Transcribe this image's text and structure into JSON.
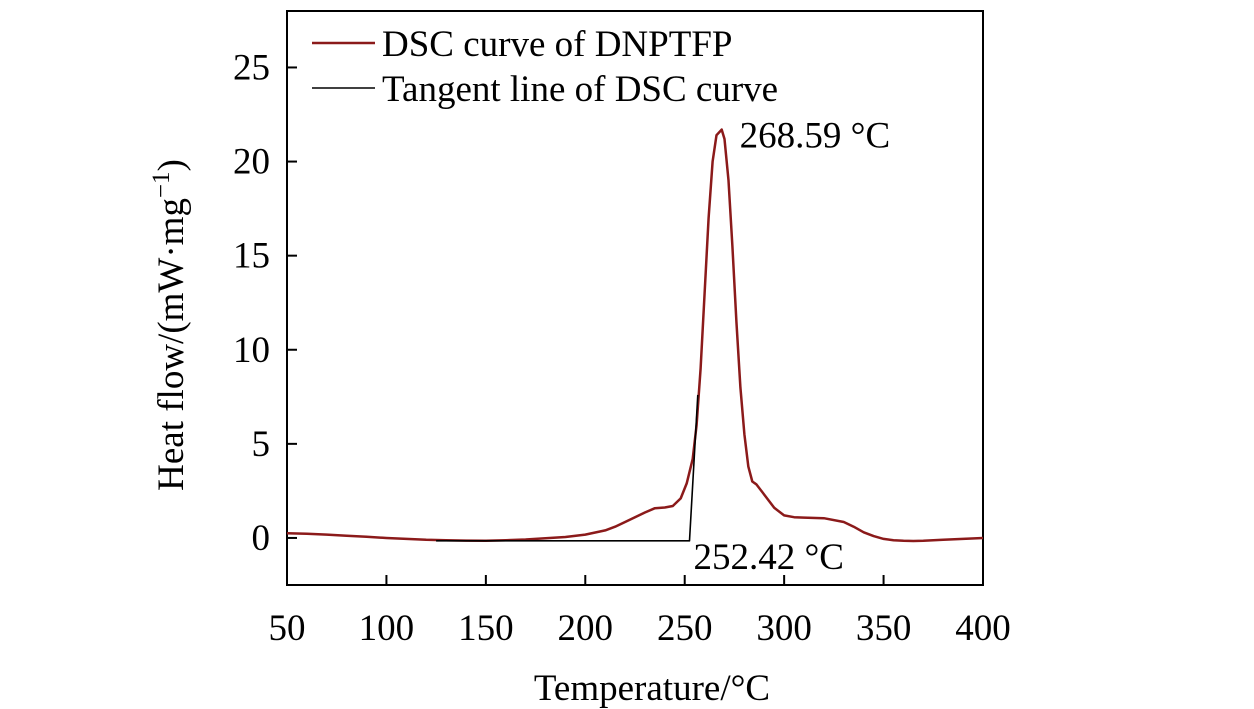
{
  "chart_data": {
    "type": "line",
    "xlabel": "Temperature/°C",
    "ylabel_main": "Heat flow/(mW·mg",
    "ylabel_sup": "−1",
    "ylabel_close": ")",
    "xlim": [
      50,
      400
    ],
    "ylim": [
      -2.5,
      28
    ],
    "xticks": [
      50,
      100,
      150,
      200,
      250,
      300,
      350,
      400
    ],
    "yticks": [
      0,
      5,
      10,
      15,
      20,
      25
    ],
    "grid": false,
    "legend_position": "top-left",
    "series": [
      {
        "name": "DSC curve of DNPTFP",
        "color": "#8b1a1a",
        "x": [
          50,
          60,
          70,
          80,
          90,
          100,
          110,
          120,
          130,
          140,
          150,
          160,
          170,
          180,
          190,
          200,
          210,
          215,
          220,
          225,
          230,
          235,
          240,
          244,
          248,
          251,
          254,
          256,
          258,
          260,
          262,
          264,
          266,
          268.59,
          270,
          272,
          274,
          276,
          278,
          280,
          282,
          284,
          286,
          290,
          295,
          300,
          305,
          310,
          320,
          330,
          335,
          340,
          345,
          350,
          355,
          360,
          365,
          370,
          375,
          380,
          390,
          400
        ],
        "y": [
          0.25,
          0.22,
          0.18,
          0.12,
          0.06,
          0.0,
          -0.05,
          -0.1,
          -0.12,
          -0.14,
          -0.15,
          -0.12,
          -0.08,
          -0.02,
          0.05,
          0.18,
          0.4,
          0.6,
          0.85,
          1.1,
          1.35,
          1.58,
          1.62,
          1.7,
          2.1,
          2.9,
          4.2,
          6.0,
          9.0,
          13.0,
          17.0,
          20.0,
          21.4,
          21.7,
          21.2,
          19.0,
          15.5,
          11.5,
          8.0,
          5.5,
          3.8,
          3.0,
          2.85,
          2.3,
          1.6,
          1.2,
          1.1,
          1.08,
          1.05,
          0.85,
          0.6,
          0.3,
          0.1,
          -0.05,
          -0.12,
          -0.15,
          -0.16,
          -0.15,
          -0.12,
          -0.1,
          -0.05,
          0.0
        ]
      },
      {
        "name": "Tangent line of DSC curve",
        "color": "#000000",
        "x": [
          125,
          252.42,
          256.6
        ],
        "y": [
          -0.15,
          -0.15,
          7.6
        ]
      }
    ],
    "annotations": [
      {
        "text": "268.59 °C",
        "x": 268.59,
        "y": 21.7
      },
      {
        "text": "252.42 °C",
        "x": 252.42,
        "y": -0.15
      }
    ]
  }
}
